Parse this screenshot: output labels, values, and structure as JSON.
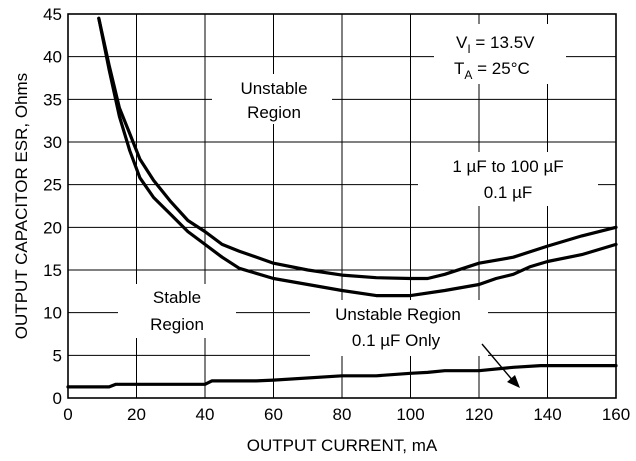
{
  "chart_data": {
    "type": "line",
    "title": "",
    "xlabel": "OUTPUT CURRENT, mA",
    "ylabel": "OUTPUT CAPACITOR ESR, Ohms",
    "xlim": [
      0,
      160
    ],
    "ylim": [
      0,
      45
    ],
    "x_ticks": [
      0,
      20,
      40,
      60,
      80,
      100,
      120,
      140,
      160
    ],
    "y_ticks": [
      0,
      5,
      10,
      15,
      20,
      25,
      30,
      35,
      40,
      45
    ],
    "grid": true,
    "series": [
      {
        "name": "1 µF to 100 µF",
        "x": [
          9,
          12,
          15,
          18,
          21,
          25,
          30,
          35,
          40,
          45,
          50,
          60,
          70,
          80,
          90,
          100,
          105,
          110,
          120,
          130,
          140,
          150,
          160
        ],
        "y": [
          44.5,
          39,
          34,
          31,
          28,
          25.5,
          23,
          20.8,
          19.5,
          18,
          17.2,
          15.8,
          15,
          14.4,
          14.1,
          14,
          14,
          14.5,
          15.8,
          16.5,
          17.8,
          19,
          20
        ]
      },
      {
        "name": "0.1 µF",
        "x": [
          9,
          12,
          15,
          18,
          21,
          25,
          30,
          35,
          40,
          45,
          50,
          60,
          70,
          80,
          90,
          100,
          110,
          120,
          125,
          130,
          135,
          140,
          150,
          160
        ],
        "y": [
          44.5,
          38.5,
          33,
          29,
          25.8,
          23.5,
          21.5,
          19.5,
          18,
          16.5,
          15.2,
          14,
          13.3,
          12.6,
          12,
          12,
          12.6,
          13.3,
          14,
          14.5,
          15.4,
          16,
          16.8,
          18
        ]
      },
      {
        "name": "0.1 µF Only",
        "x": [
          0,
          12,
          14,
          40,
          42,
          55,
          60,
          80,
          90,
          100,
          105,
          110,
          120,
          130,
          138,
          145,
          150,
          160
        ],
        "y": [
          1.3,
          1.3,
          1.6,
          1.6,
          2,
          2,
          2.1,
          2.6,
          2.6,
          2.9,
          3,
          3.2,
          3.2,
          3.6,
          3.8,
          3.8,
          3.8,
          3.8
        ]
      }
    ],
    "annotations": {
      "vi": "V",
      "vi_sub": "I",
      "vi_val": " = 13.5V",
      "ta": "T",
      "ta_sub": "A",
      "ta_val": " = 25°C",
      "unstable_top_1": "Unstable",
      "unstable_top_2": "Region",
      "stable_1": "Stable",
      "stable_2": "Region",
      "curve_label_1": "1 µF to 100 µF",
      "curve_label_2": "0.1 µF",
      "unstable_bottom_1": "Unstable Region",
      "unstable_bottom_2": "0.1 µF Only"
    }
  }
}
